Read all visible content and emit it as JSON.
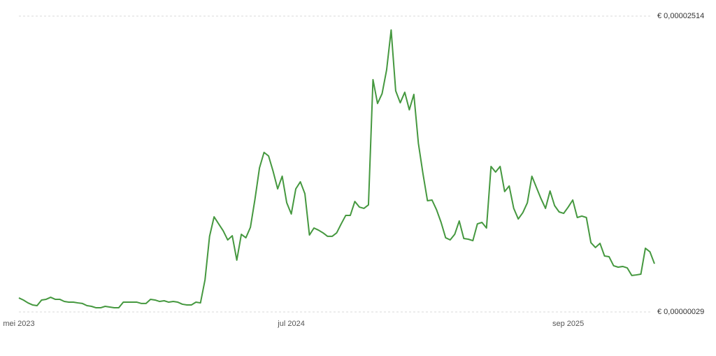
{
  "chart_data": {
    "type": "line",
    "categories": [
      "mei 2023",
      null,
      null,
      null,
      null,
      null,
      null,
      null,
      null,
      null,
      null,
      null,
      null,
      null,
      null,
      null,
      null,
      null,
      null,
      null,
      null,
      null,
      null,
      null,
      null,
      null,
      null,
      null,
      null,
      null,
      null,
      null,
      null,
      null,
      null,
      null,
      null,
      null,
      null,
      null,
      null,
      null,
      null,
      null,
      null,
      null,
      null,
      null,
      null,
      null,
      null,
      null,
      null,
      null,
      null,
      null,
      null,
      null,
      null,
      null,
      "jul 2024",
      null,
      null,
      null,
      null,
      null,
      null,
      null,
      null,
      null,
      null,
      null,
      null,
      null,
      null,
      null,
      null,
      null,
      null,
      null,
      null,
      null,
      null,
      null,
      null,
      null,
      null,
      null,
      null,
      null,
      null,
      null,
      null,
      null,
      null,
      null,
      null,
      null,
      null,
      null,
      null,
      null,
      null,
      null,
      null,
      null,
      null,
      null,
      null,
      null,
      null,
      null,
      null,
      null,
      null,
      null,
      null,
      null,
      null,
      null,
      null,
      "sep 2025",
      null,
      null,
      null,
      null,
      null,
      null,
      null,
      null,
      null,
      null,
      null,
      null,
      null,
      null,
      null,
      null,
      null,
      null,
      null
    ],
    "values": [
      1.47e-06,
      1.29e-06,
      1.05e-06,
      8.8e-07,
      8.2e-07,
      1.29e-06,
      1.35e-06,
      1.52e-06,
      1.35e-06,
      1.35e-06,
      1.17e-06,
      1.11e-06,
      1.11e-06,
      1.05e-06,
      1e-06,
      8.2e-07,
      7.6e-07,
      6.4e-07,
      6.4e-07,
      7.6e-07,
      7e-07,
      6.4e-07,
      6.4e-07,
      1.11e-06,
      1.11e-06,
      1.11e-06,
      1.11e-06,
      1e-06,
      1e-06,
      1.35e-06,
      1.29e-06,
      1.17e-06,
      1.23e-06,
      1.11e-06,
      1.17e-06,
      1.11e-06,
      9.4e-07,
      8.8e-07,
      8.8e-07,
      1.11e-06,
      1.05e-06,
      2.99e-06,
      6.64e-06,
      8.28e-06,
      7.69e-06,
      7.11e-06,
      6.34e-06,
      6.69e-06,
      4.64e-06,
      6.81e-06,
      6.52e-06,
      7.4e-06,
      9.75e-06,
      1.239e-05,
      1.369e-05,
      1.339e-05,
      1.21e-05,
      1.063e-05,
      1.169e-05,
      9.46e-06,
      8.52e-06,
      1.063e-05,
      1.122e-05,
      1.022e-05,
      6.75e-06,
      7.34e-06,
      7.16e-06,
      6.93e-06,
      6.64e-06,
      6.64e-06,
      6.93e-06,
      7.69e-06,
      8.4e-06,
      8.4e-06,
      9.57e-06,
      9.1e-06,
      8.99e-06,
      9.28e-06,
      1.98e-05,
      1.78e-05,
      1.862e-05,
      2.062e-05,
      2.397e-05,
      1.886e-05,
      1.786e-05,
      1.874e-05,
      1.727e-05,
      1.856e-05,
      1.445e-05,
      1.192e-05,
      9.63e-06,
      9.69e-06,
      8.87e-06,
      7.81e-06,
      6.52e-06,
      6.34e-06,
      6.81e-06,
      7.93e-06,
      6.46e-06,
      6.4e-06,
      6.28e-06,
      7.69e-06,
      7.81e-06,
      7.34e-06,
      1.251e-05,
      1.204e-05,
      1.251e-05,
      1.04e-05,
      1.087e-05,
      8.99e-06,
      8.1e-06,
      8.63e-06,
      9.46e-06,
      1.169e-05,
      1.075e-05,
      9.81e-06,
      8.99e-06,
      1.045e-05,
      9.22e-06,
      8.69e-06,
      8.57e-06,
      9.1e-06,
      9.69e-06,
      8.22e-06,
      8.34e-06,
      8.22e-06,
      6.11e-06,
      5.7e-06,
      6.05e-06,
      4.99e-06,
      4.93e-06,
      4.17e-06,
      4.05e-06,
      4.11e-06,
      3.99e-06,
      3.35e-06,
      3.4e-06,
      3.46e-06,
      5.64e-06,
      5.34e-06,
      4.34e-06
    ],
    "color": "#45983f",
    "ylim": [
      2.9e-07,
      2.514e-05
    ],
    "yticks": [
      {
        "value": 2.9e-07,
        "label": "€ 0,00000029"
      },
      {
        "value": 2.514e-05,
        "label": "€ 0,00002514"
      }
    ],
    "grid": true
  }
}
